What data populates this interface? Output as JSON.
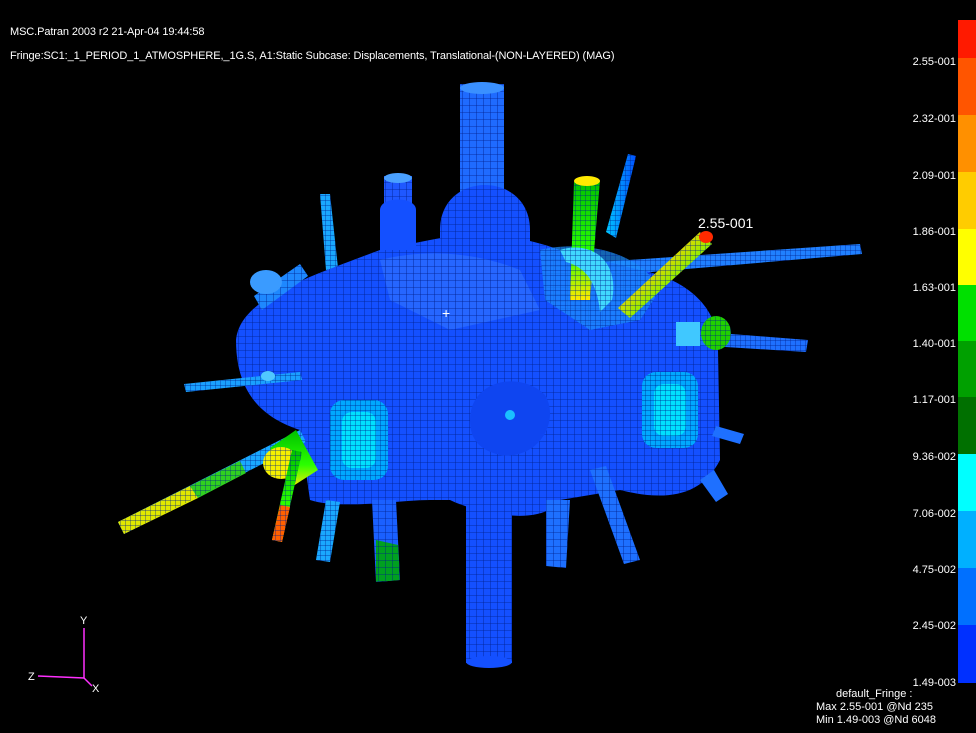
{
  "header": {
    "line1": "MSC.Patran 2003 r2 21-Apr-04 19:44:58",
    "line2": "Fringe:SC1:_1_PERIOD_1_ATMOSPHERE,_1G.S, A1:Static Subcase: Displacements, Translational-(NON-LAYERED) (MAG)"
  },
  "legend": {
    "ticks": [
      "2.55-001",
      "2.32-001",
      "2.09-001",
      "1.86-001",
      "1.63-001",
      "1.40-001",
      "1.17-001",
      "9.36-002",
      "7.06-002",
      "4.75-002",
      "2.45-002",
      "1.49-003"
    ],
    "colors": [
      "#ffffff",
      "#ff1a00",
      "#ff5500",
      "#ff9000",
      "#ffcc00",
      "#ffff00",
      "#00e000",
      "#00a000",
      "#007000",
      "#00ffff",
      "#00b0ff",
      "#0070ff",
      "#0030ff",
      "#0010c0"
    ]
  },
  "model": {
    "peak_label": "2.55-001",
    "cursor": "+"
  },
  "triad": {
    "y": "Y",
    "z": "Z",
    "x": "X"
  },
  "footer": {
    "name": "default_Fringe :",
    "max": "Max 2.55-001 @Nd 235",
    "min": "Min 1.49-003 @Nd 6048"
  }
}
